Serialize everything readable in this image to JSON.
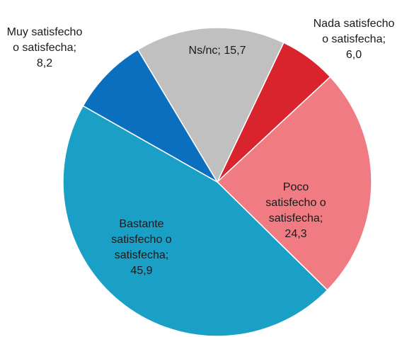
{
  "chart_data": {
    "type": "pie",
    "categories": [
      "Nada satisfecho o satisfecha",
      "Poco satisfecho o satisfecha",
      "Bastante satisfecho o satisfecha",
      "Muy satisfecho o satisfecha",
      "Ns/nc"
    ],
    "values": [
      6.0,
      24.3,
      45.9,
      8.2,
      15.7
    ],
    "value_labels": [
      "6,0",
      "24,3",
      "45,9",
      "8,2",
      "15,7"
    ],
    "label_separator": ";",
    "colors": [
      "#d9232d",
      "#f07b82",
      "#1a9fc7",
      "#0a6fbf",
      "#c0c0c0"
    ]
  }
}
